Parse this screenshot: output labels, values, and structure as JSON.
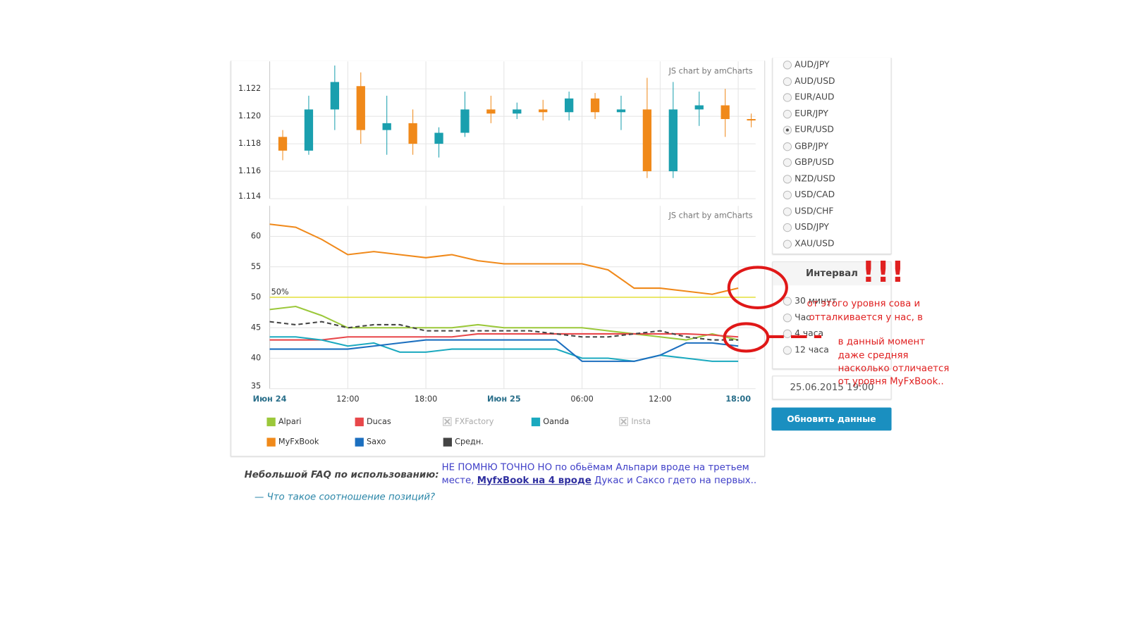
{
  "chart_data": [
    {
      "type": "candlestick",
      "credit": "JS chart by amCharts",
      "open": [
        1.1185,
        1.1175,
        1.1205,
        1.1222,
        1.119,
        1.1195,
        1.118,
        1.1188,
        1.1205,
        1.1202,
        1.1205,
        1.1203,
        1.1213,
        1.1203,
        1.1205,
        1.116,
        1.1205,
        1.1208,
        1.1198
      ],
      "high": [
        1.119,
        1.1215,
        1.1237,
        1.1232,
        1.1215,
        1.1205,
        1.1192,
        1.1218,
        1.1215,
        1.121,
        1.1212,
        1.1218,
        1.1217,
        1.1215,
        1.1228,
        1.1225,
        1.1218,
        1.122,
        1.1202
      ],
      "low": [
        1.1168,
        1.1172,
        1.119,
        1.118,
        1.1172,
        1.1172,
        1.117,
        1.1185,
        1.1195,
        1.1198,
        1.1197,
        1.1197,
        1.1198,
        1.119,
        1.1155,
        1.1155,
        1.1193,
        1.1185,
        1.1192
      ],
      "close": [
        1.1175,
        1.1205,
        1.1225,
        1.119,
        1.1195,
        1.118,
        1.1188,
        1.1205,
        1.1202,
        1.1205,
        1.1203,
        1.1213,
        1.1203,
        1.1205,
        1.116,
        1.1205,
        1.1208,
        1.1198,
        1.1197
      ],
      "up_color": "#1a9fae",
      "down_color": "#f0891a",
      "ylim": [
        1.114,
        1.124
      ],
      "yticks": [
        1.114,
        {
          "value": 1.116,
          "label": "1.116"
        },
        {
          "value": 1.118,
          "label": "1.118"
        },
        {
          "value": 1.12,
          "label": "1.120"
        },
        {
          "value": 1.122,
          "label": "1.122"
        }
      ],
      "grid": true
    },
    {
      "type": "line",
      "credit": "JS chart by amCharts",
      "categories": [
        "Июн 24",
        null,
        null,
        "12:00",
        null,
        null,
        "18:00",
        null,
        null,
        "Июн 25",
        null,
        null,
        "06:00",
        null,
        null,
        "12:00",
        null,
        null,
        "18:00"
      ],
      "series": [
        {
          "name": "Alpari",
          "color": "#9bc83a",
          "values": [
            48,
            48.5,
            47,
            45,
            45,
            45,
            45,
            45,
            45.5,
            45,
            45,
            45,
            45,
            44.5,
            44,
            43.5,
            43,
            44,
            43
          ]
        },
        {
          "name": "Ducas",
          "color": "#e8474a",
          "values": [
            43,
            43,
            43,
            43.5,
            43.5,
            43.5,
            43.5,
            43.5,
            44,
            44,
            44,
            44,
            44,
            44,
            44,
            44,
            44,
            43.8,
            43.5
          ]
        },
        {
          "name": "Oanda",
          "color": "#1aa9bf",
          "values": [
            43.5,
            43.5,
            43,
            42,
            42.5,
            41,
            41,
            41.5,
            41.5,
            41.5,
            41.5,
            41.5,
            40,
            40,
            39.5,
            40.5,
            40,
            39.5,
            39.5
          ]
        },
        {
          "name": "MyFxBook",
          "color": "#f0891a",
          "values": [
            62,
            61.5,
            59.5,
            57,
            57.5,
            57,
            56.5,
            57,
            56,
            55.5,
            55.5,
            55.5,
            55.5,
            54.5,
            51.5,
            51.5,
            51,
            50.5,
            51.5
          ]
        },
        {
          "name": "Saxo",
          "color": "#1c6fbf",
          "values": [
            41.5,
            41.5,
            41.5,
            41.5,
            42,
            42.5,
            43,
            43,
            43,
            43,
            43,
            43,
            39.5,
            39.5,
            39.5,
            40.5,
            42.5,
            42.5,
            42
          ]
        },
        {
          "name": "Средн.",
          "color": "#444444",
          "dashed": true,
          "values": [
            46,
            45.5,
            46,
            45,
            45.5,
            45.5,
            44.5,
            44.5,
            44.5,
            44.5,
            44.5,
            44,
            43.5,
            43.5,
            44,
            44.5,
            43.5,
            43,
            43
          ]
        }
      ],
      "hidden_series": [
        "FXFactory",
        "Insta"
      ],
      "guide": {
        "value": 50,
        "label": "50%",
        "color": "#e3df3a"
      },
      "ylim": [
        35,
        65
      ],
      "yticks": [
        35,
        40,
        45,
        50,
        55,
        60
      ],
      "grid": true
    }
  ],
  "instruments": {
    "options": [
      "AUD/JPY",
      "AUD/USD",
      "EUR/AUD",
      "EUR/JPY",
      "EUR/USD",
      "GBP/JPY",
      "GBP/USD",
      "NZD/USD",
      "USD/CAD",
      "USD/CHF",
      "USD/JPY",
      "XAU/USD"
    ],
    "selected": "EUR/USD"
  },
  "interval": {
    "title": "Интервал",
    "options": [
      "30 минут",
      "Час",
      "4 часа",
      "12 часа"
    ]
  },
  "date": "25.06.2015 19:00",
  "button": "Обновить данные",
  "faq": {
    "title": "Небольшой FAQ по использованию:",
    "items": [
      "— Что такое соотношение позиций?"
    ]
  },
  "annotations": {
    "blue_line1": "НЕ ПОМНЮ ТОЧНО НО по обьёмам Альпари вроде на третьем",
    "blue_line2": [
      "месте, ",
      "MyfxBook на 4 вроде",
      " Дукас и Саксо гдето на первых.."
    ],
    "exclaim": "!!!",
    "red": [
      "от этого уровня сова и",
      "отталкивается у нас, в",
      "в данный момент",
      "даже средняя",
      "насколько отличается",
      "от уровня MyFxBook.."
    ]
  }
}
